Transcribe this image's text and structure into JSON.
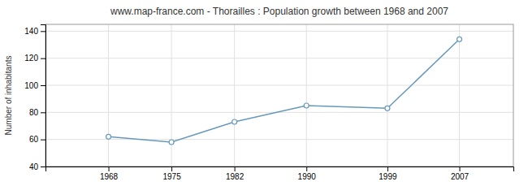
{
  "chart_data": {
    "type": "line",
    "title": "www.map-france.com - Thorailles : Population growth between 1968 and 2007",
    "ylabel": "Number of inhabitants",
    "x": [
      1968,
      1975,
      1982,
      1990,
      1999,
      2007
    ],
    "values": [
      62,
      58,
      73,
      85,
      83,
      134
    ],
    "color": "#6699bb",
    "marker": "circle",
    "xlim": [
      1961,
      2013
    ],
    "xticks": [
      1968,
      1975,
      1982,
      1990,
      1999,
      2007
    ],
    "ylim": [
      40,
      145
    ],
    "yticks": [
      40,
      60,
      80,
      100,
      120,
      140
    ],
    "grid": true
  }
}
